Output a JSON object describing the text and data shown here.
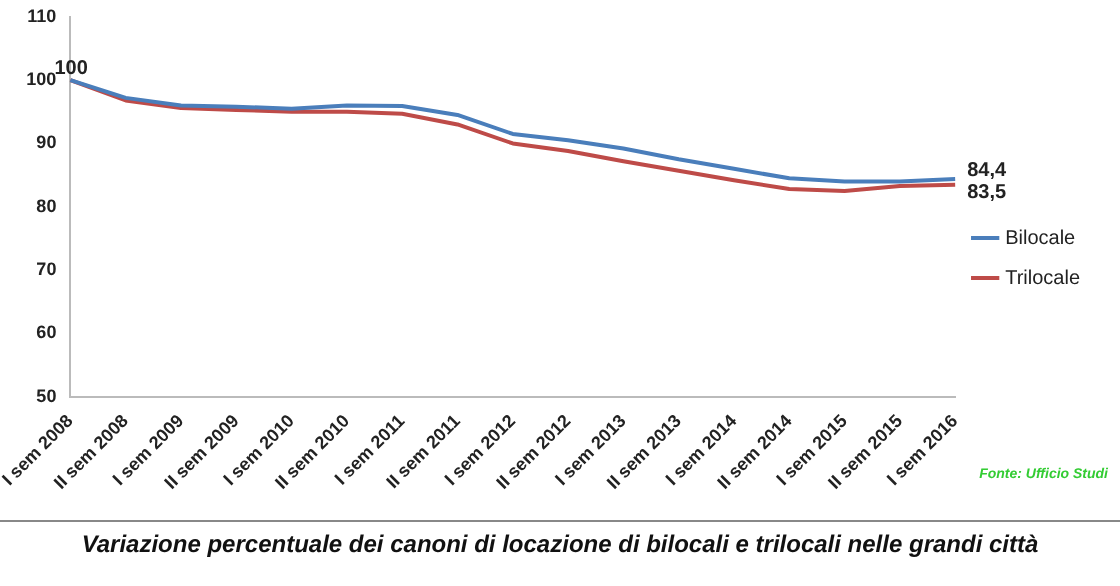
{
  "chart_data": {
    "type": "line",
    "title": "Variazione percentuale dei canoni di locazione di bilocali e trilocali nelle grandi città",
    "categories": [
      "I sem 2008",
      "II sem 2008",
      "I sem 2009",
      "II sem 2009",
      "I sem 2010",
      "II sem 2010",
      "I sem 2011",
      "II sem 2011",
      "I sem 2012",
      "II sem 2012",
      "I sem 2013",
      "II sem 2013",
      "I sem 2014",
      "II sem 2014",
      "I sem 2015",
      "II sem 2015",
      "I sem 2016"
    ],
    "series": [
      {
        "name": "Bilocale",
        "color": "#4a7ebb",
        "values": [
          100,
          97.2,
          96.0,
          95.8,
          95.5,
          96.0,
          95.9,
          94.5,
          91.5,
          90.5,
          89.2,
          87.5,
          86.0,
          84.5,
          84.0,
          84.0,
          84.4
        ],
        "value_labels": [
          "100",
          null,
          null,
          null,
          null,
          null,
          null,
          null,
          null,
          null,
          null,
          null,
          null,
          null,
          null,
          null,
          "84,4"
        ]
      },
      {
        "name": "Trilocale",
        "color": "#be4b48",
        "values": [
          100,
          96.8,
          95.6,
          95.3,
          95.0,
          95.0,
          94.7,
          93.0,
          90.0,
          88.8,
          87.2,
          85.7,
          84.2,
          82.8,
          82.5,
          83.3,
          83.5
        ],
        "value_labels": [
          null,
          null,
          null,
          null,
          null,
          null,
          null,
          null,
          null,
          null,
          null,
          null,
          null,
          null,
          null,
          null,
          "83,5"
        ]
      }
    ],
    "ylim": [
      50,
      110
    ],
    "yticks": [
      50,
      60,
      70,
      80,
      90,
      100,
      110
    ],
    "grid": false,
    "legend": "right",
    "marker": "none",
    "line_style": "solid",
    "annotations": [
      "Fonte: Ufficio Studi"
    ]
  }
}
